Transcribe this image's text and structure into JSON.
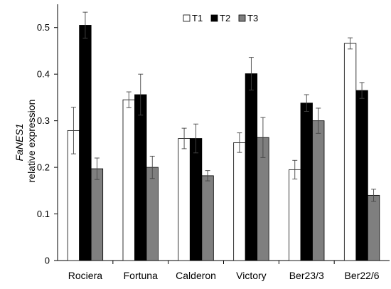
{
  "chart_data": {
    "type": "bar",
    "ylabel_line1": "FaNES1",
    "ylabel_line2": "relative expression",
    "ylim": [
      0,
      0.5
    ],
    "yticks": [
      "0",
      "0.1",
      "0.2",
      "0.3",
      "0.4",
      "0.5"
    ],
    "ytick_values": [
      0,
      0.1,
      0.2,
      0.3,
      0.4,
      0.5
    ],
    "grid": false,
    "legend_position": "top-center",
    "categories": [
      "Rociera",
      "Fortuna",
      "Calderon",
      "Victory",
      "Ber23/3",
      "Ber22/6"
    ],
    "series": [
      {
        "name": "T1",
        "color": "#ffffff",
        "values": [
          0.279,
          0.345,
          0.262,
          0.253,
          0.195,
          0.466
        ],
        "errors": [
          0.05,
          0.017,
          0.022,
          0.021,
          0.02,
          0.012
        ]
      },
      {
        "name": "T2",
        "color": "#000000",
        "values": [
          0.505,
          0.356,
          0.262,
          0.401,
          0.338,
          0.365
        ],
        "errors": [
          0.028,
          0.044,
          0.031,
          0.035,
          0.018,
          0.017
        ]
      },
      {
        "name": "T3",
        "color": "#7f7f7f",
        "values": [
          0.197,
          0.2,
          0.182,
          0.264,
          0.3,
          0.14
        ],
        "errors": [
          0.023,
          0.024,
          0.011,
          0.043,
          0.027,
          0.013
        ]
      }
    ]
  }
}
